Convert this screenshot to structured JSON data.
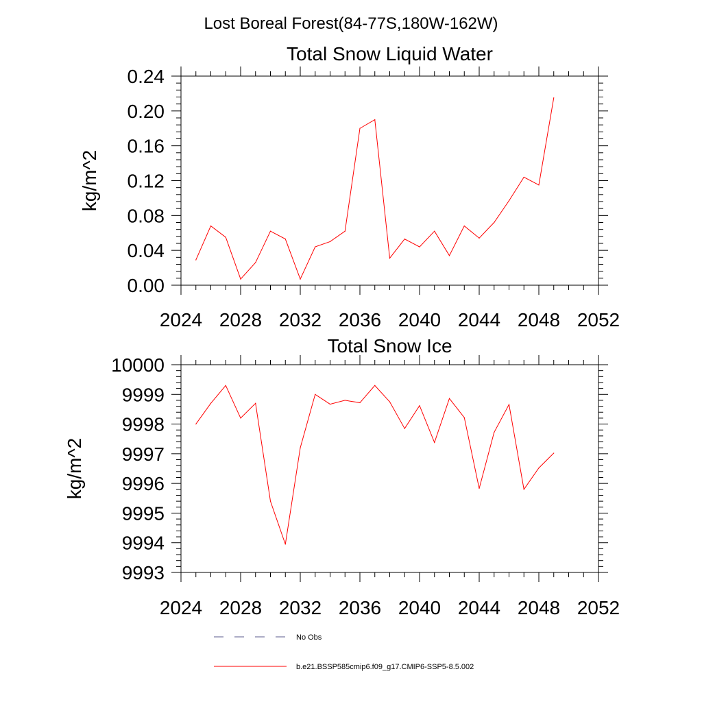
{
  "figure": {
    "title": "Lost Boreal Forest(84-77S,180W-162W)"
  },
  "colors": {
    "series_line": "#ff0000",
    "obs_line": "#5a5a8c",
    "axis": "#000000"
  },
  "chart_data": [
    {
      "type": "line",
      "title": "Total Snow Liquid Water",
      "xlabel": "",
      "ylabel": "kg/m^2",
      "xlim": [
        2024,
        2052
      ],
      "ylim": [
        0.0,
        0.24
      ],
      "xticks": [
        2024,
        2028,
        2032,
        2036,
        2040,
        2044,
        2048,
        2052
      ],
      "xtick_labels": [
        "2024",
        "2028",
        "2032",
        "2036",
        "2040",
        "2044",
        "2048",
        "2052"
      ],
      "yticks": [
        0.0,
        0.04,
        0.08,
        0.12,
        0.16,
        0.2,
        0.24
      ],
      "ytick_labels": [
        "0.00",
        "0.04",
        "0.08",
        "0.12",
        "0.16",
        "0.20",
        "0.24"
      ],
      "series": [
        {
          "name": "b.e21.BSSP585cmip6.f09_g17.CMIP6-SSP5-8.5.002",
          "x": [
            2025,
            2026,
            2027,
            2028,
            2029,
            2030,
            2031,
            2032,
            2033,
            2034,
            2035,
            2036,
            2037,
            2038,
            2039,
            2040,
            2041,
            2042,
            2043,
            2044,
            2045,
            2046,
            2047,
            2048,
            2049
          ],
          "values": [
            0.029,
            0.068,
            0.055,
            0.007,
            0.026,
            0.062,
            0.053,
            0.007,
            0.044,
            0.05,
            0.062,
            0.18,
            0.19,
            0.031,
            0.053,
            0.044,
            0.062,
            0.034,
            0.068,
            0.054,
            0.072,
            0.097,
            0.124,
            0.115,
            0.215
          ]
        }
      ]
    },
    {
      "type": "line",
      "title": "Total Snow Ice",
      "xlabel": "",
      "ylabel": "kg/m^2",
      "xlim": [
        2024,
        2052
      ],
      "ylim": [
        9993,
        10000
      ],
      "xticks": [
        2024,
        2028,
        2032,
        2036,
        2040,
        2044,
        2048,
        2052
      ],
      "xtick_labels": [
        "2024",
        "2028",
        "2032",
        "2036",
        "2040",
        "2044",
        "2048",
        "2052"
      ],
      "yticks": [
        9993,
        9994,
        9995,
        9996,
        9997,
        9998,
        9999,
        10000
      ],
      "ytick_labels": [
        "9993",
        "9994",
        "9995",
        "9996",
        "9997",
        "9998",
        "9999",
        "10000"
      ],
      "series": [
        {
          "name": "b.e21.BSSP585cmip6.f09_g17.CMIP6-SSP5-8.5.002",
          "x": [
            2025,
            2026,
            2027,
            2028,
            2029,
            2030,
            2031,
            2032,
            2033,
            2034,
            2035,
            2036,
            2037,
            2038,
            2039,
            2040,
            2041,
            2042,
            2043,
            2044,
            2045,
            2046,
            2047,
            2048,
            2049
          ],
          "values": [
            9998.0,
            9998.7,
            9999.3,
            9998.2,
            9998.7,
            9995.4,
            9993.95,
            9997.2,
            9999.0,
            9998.67,
            9998.8,
            9998.72,
            9999.3,
            9998.75,
            9997.85,
            9998.62,
            9997.38,
            9998.86,
            9998.22,
            9995.83,
            9997.72,
            9998.66,
            9995.8,
            9996.52,
            9997.02
          ]
        }
      ]
    }
  ],
  "legend": {
    "position": "bottom",
    "entries": [
      {
        "label": "No Obs",
        "style": "dashed"
      },
      {
        "label": "b.e21.BSSP585cmip6.f09_g17.CMIP6-SSP5-8.5.002",
        "style": "solid"
      }
    ]
  }
}
